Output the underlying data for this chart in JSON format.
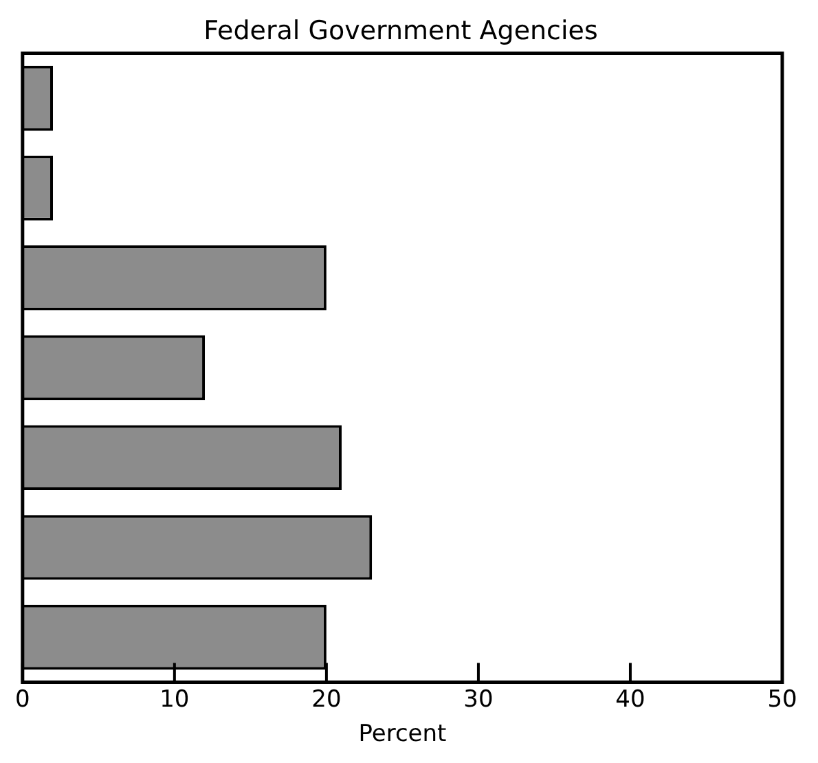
{
  "chart_data": {
    "type": "bar",
    "orientation": "horizontal",
    "title": "Federal Government Agencies",
    "xlabel": "Percent",
    "categories": [
      null,
      null,
      null,
      null,
      null,
      null,
      null
    ],
    "values": [
      2,
      2,
      20,
      12,
      21,
      23,
      20
    ],
    "color": "#8c8c8c",
    "xlim": [
      0,
      50
    ],
    "xticks": [
      0,
      10,
      20,
      30,
      40,
      50
    ],
    "grid": false,
    "tick_labels": "x",
    "legend": false
  }
}
